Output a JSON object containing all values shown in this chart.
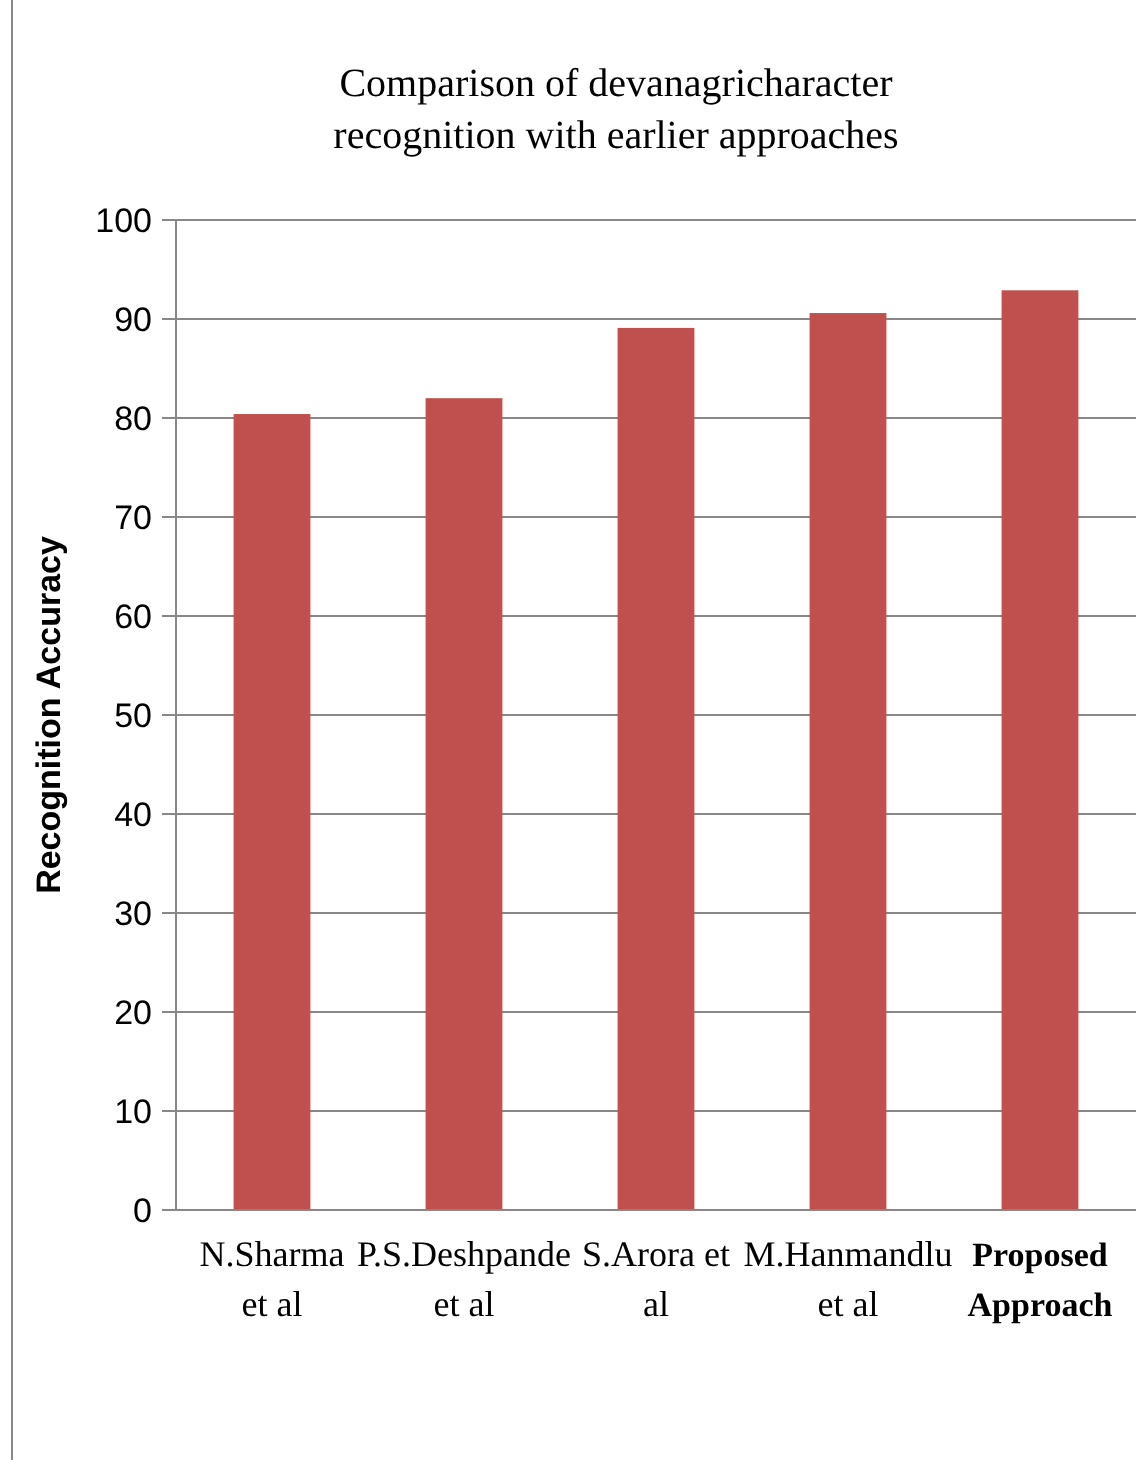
{
  "chart_data": {
    "type": "bar",
    "title": "Comparison of devanagricharacter recognition with earlier approaches",
    "ylabel": "Recognition Accuracy",
    "categories": [
      "N.Sharma et al",
      "P.S.Deshpande et al",
      "S.Arora et al",
      "M.Hanmandlu et al",
      "Proposed Approach"
    ],
    "values": [
      80.4,
      82,
      89.1,
      90.6,
      92.9
    ],
    "color": "#c0504d",
    "ylim": [
      0,
      100
    ],
    "yticks": [
      0,
      10,
      20,
      30,
      40,
      50,
      60,
      70,
      80,
      90,
      100
    ],
    "grid": "y"
  }
}
